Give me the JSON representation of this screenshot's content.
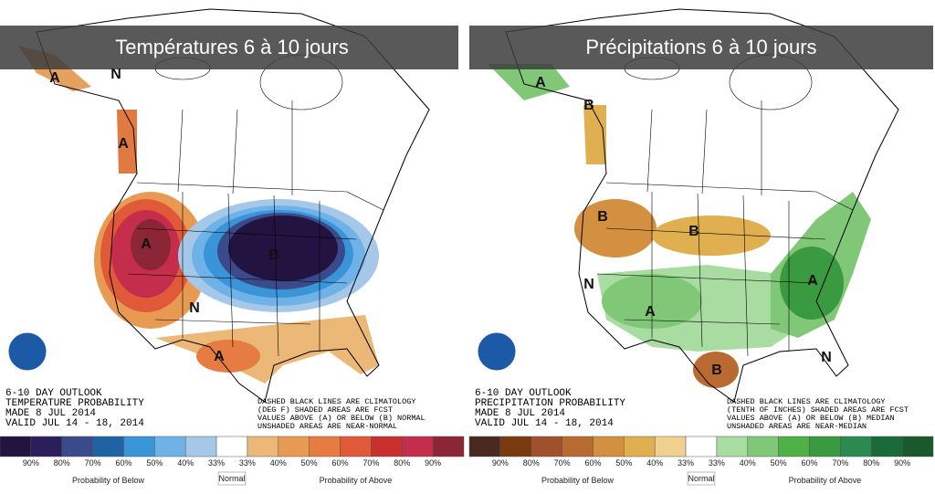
{
  "panels": [
    {
      "title": "Températures 6 à 10 jours",
      "outlook": [
        "6-10 DAY OUTLOOK",
        "TEMPERATURE PROBABILITY",
        "MADE  8 JUL 2014",
        "VALID  JUL 14 - 18, 2014"
      ],
      "notes": [
        "DASHED BLACK LINES ARE CLIMATOLOGY",
        "(DEG F) SHADED AREAS ARE FCST",
        "VALUES ABOVE (A) OR BELOW (B) NORMAL",
        "UNSHADED AREAS ARE NEAR-NORMAL"
      ],
      "map_labels": [
        "A",
        "N",
        "A",
        "A",
        "B",
        "N",
        "A"
      ],
      "scale": {
        "labels": [
          "90%",
          "80%",
          "70%",
          "60%",
          "50%",
          "40%",
          "33%",
          "33%",
          "40%",
          "50%",
          "60%",
          "70%",
          "80%",
          "90%"
        ],
        "colors": [
          "#231340",
          "#2b1f5b",
          "#3b4a8a",
          "#1f63a5",
          "#3a95d8",
          "#6fb2e8",
          "#a6c8e8",
          "#ffffff",
          "#ecb878",
          "#e99a52",
          "#e67c42",
          "#e05a3a",
          "#c8302e",
          "#c42e4c",
          "#8c2535"
        ],
        "below_label": "Probability of Below",
        "normal_label": "Normal",
        "above_label": "Probability of Above"
      }
    },
    {
      "title": "Précipitations 6 à 10 jours",
      "outlook": [
        "6-10 DAY OUTLOOK",
        "PRECIPITATION PROBABILITY",
        "MADE  8 JUL 2014",
        "VALID  JUL 14 - 18, 2014"
      ],
      "notes": [
        "DASHED BLACK LINES ARE CLIMATOLOGY",
        "(TENTH OF INCHES) SHADED AREAS ARE FCST",
        "VALUES ABOVE (A) OR BELOW (B) MEDIAN",
        "UNSHADED AREAS ARE NEAR-MEDIAN"
      ],
      "map_labels": [
        "A",
        "B",
        "B",
        "B",
        "N",
        "A",
        "A",
        "B",
        "N"
      ],
      "scale": {
        "labels": [
          "90%",
          "80%",
          "70%",
          "60%",
          "50%",
          "40%",
          "33%",
          "33%",
          "40%",
          "50%",
          "60%",
          "70%",
          "80%",
          "90%"
        ],
        "colors": [
          "#4a2a20",
          "#7a3a10",
          "#a0502a",
          "#b86a30",
          "#d29040",
          "#e0b050",
          "#f0d090",
          "#ffffff",
          "#a8dca0",
          "#80c878",
          "#50b048",
          "#3a9a40",
          "#2a8a50",
          "#1a6a3a",
          "#1a5a2a"
        ],
        "below_label": "Probability of Below",
        "normal_label": "Normal",
        "above_label": "Probability of Above"
      }
    }
  ]
}
